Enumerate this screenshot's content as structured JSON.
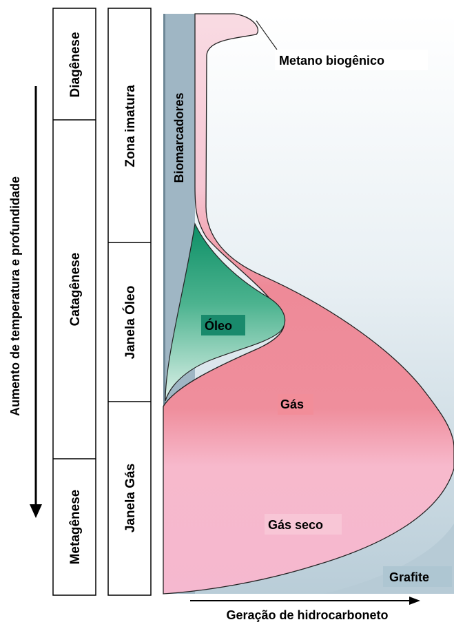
{
  "axis": {
    "vertical_label": "Aumento de temperatura e profundidade",
    "horizontal_label": "Geração de hidrocarboneto"
  },
  "stages": [
    {
      "label": "Diagênese"
    },
    {
      "label": "Catagênese"
    },
    {
      "label": "Metagênese"
    }
  ],
  "zones": [
    {
      "label": "Zona imatura"
    },
    {
      "label": "Janela Óleo"
    },
    {
      "label": "Janela Gás"
    }
  ],
  "products": {
    "biomarkers": "Biomarcadores",
    "biogenic_methane": "Metano biogênico",
    "oil": "Óleo",
    "gas": "Gás",
    "dry_gas": "Gás seco",
    "graphite": "Grafite"
  },
  "colors": {
    "biomarker_band": "#9fb6c4",
    "gas": "#f08a96",
    "dry_gas": "#f7b6c8",
    "oil": "#1a9a73",
    "background_light": "#eef3f6",
    "background_blue": "#c8d7e0"
  }
}
